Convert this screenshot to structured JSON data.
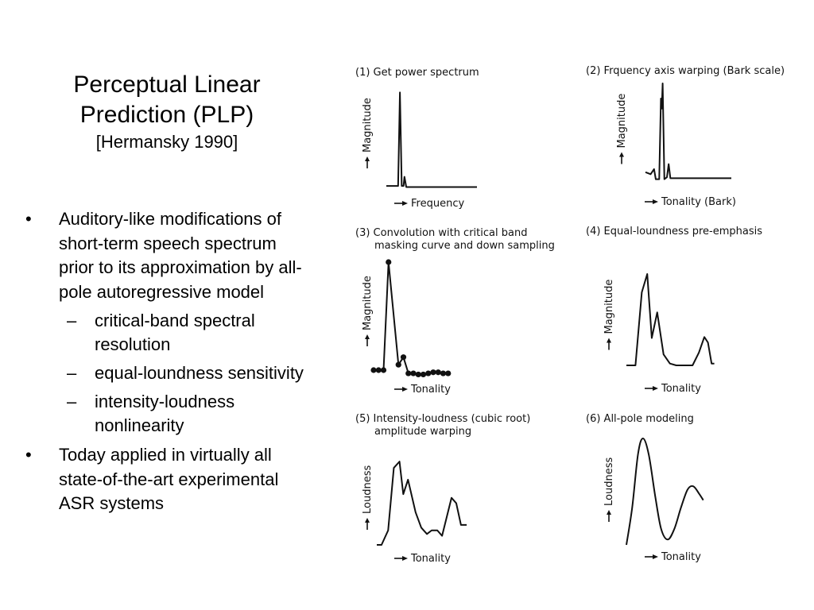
{
  "title": {
    "line1": "Perceptual Linear",
    "line2": "Prediction (PLP)",
    "citation": "[Hermansky 1990]"
  },
  "bullets": [
    {
      "text": "Auditory-like modifications of short-term speech spectrum prior to its approximation by all-pole autoregressive model",
      "subitems": [
        "critical-band spectral resolution",
        "equal-loundness sensitivity",
        "intensity-loudness nonlinearity"
      ]
    },
    {
      "text": "Today applied in virtually all state-of-the-art experimental ASR systems",
      "subitems": []
    }
  ],
  "markers": {
    "bullet": "•",
    "sub": "–"
  },
  "panels": [
    {
      "caption": [
        "(1) Get power spectrum"
      ],
      "ylabel": "Magnitude",
      "xlabel": "Frequency",
      "style": "line",
      "points": [
        [
          0,
          0.03
        ],
        [
          0.13,
          0.03
        ],
        [
          0.15,
          0.95
        ],
        [
          0.17,
          0.03
        ],
        [
          0.19,
          0.03
        ],
        [
          0.2,
          0.12
        ],
        [
          0.22,
          0.02
        ],
        [
          1,
          0.02
        ]
      ]
    },
    {
      "caption": [
        "(2) Frquency axis warping (Bark scale)"
      ],
      "ylabel": "Magnitude",
      "xlabel": "Tonality (Bark)",
      "style": "line",
      "points": [
        [
          0,
          0.12
        ],
        [
          0.06,
          0.1
        ],
        [
          0.1,
          0.15
        ],
        [
          0.12,
          0.05
        ],
        [
          0.16,
          0.05
        ],
        [
          0.18,
          0.85
        ],
        [
          0.19,
          0.75
        ],
        [
          0.2,
          1.0
        ],
        [
          0.22,
          0.05
        ],
        [
          0.25,
          0.07
        ],
        [
          0.27,
          0.2
        ],
        [
          0.29,
          0.06
        ],
        [
          1,
          0.06
        ]
      ]
    },
    {
      "caption": [
        "(3) Convolution with critical band",
        "masking curve and down sampling"
      ],
      "ylabel": "Magnitude",
      "xlabel": "Tonality",
      "style": "dots",
      "points": [
        [
          0,
          0.0
        ],
        [
          0.05,
          0.0
        ],
        [
          0.1,
          0.0
        ],
        [
          0.15,
          1.0
        ],
        [
          0.25,
          0.05
        ],
        [
          0.3,
          0.12
        ],
        [
          0.35,
          -0.03
        ],
        [
          0.4,
          -0.03
        ],
        [
          0.45,
          -0.04
        ],
        [
          0.5,
          -0.04
        ],
        [
          0.55,
          -0.03
        ],
        [
          0.6,
          -0.02
        ],
        [
          0.65,
          -0.02
        ],
        [
          0.7,
          -0.03
        ],
        [
          0.75,
          -0.03
        ]
      ]
    },
    {
      "caption": [
        "(4) Equal-loundness pre-emphasis"
      ],
      "ylabel": "Magnitude",
      "xlabel": "Tonality",
      "style": "line",
      "points": [
        [
          0,
          0.0
        ],
        [
          0.1,
          0.0
        ],
        [
          0.17,
          0.8
        ],
        [
          0.23,
          1.0
        ],
        [
          0.28,
          0.3
        ],
        [
          0.34,
          0.58
        ],
        [
          0.41,
          0.12
        ],
        [
          0.48,
          0.02
        ],
        [
          0.55,
          0.0
        ],
        [
          0.63,
          0.0
        ],
        [
          0.73,
          0.0
        ],
        [
          0.8,
          0.14
        ],
        [
          0.86,
          0.31
        ],
        [
          0.9,
          0.25
        ],
        [
          0.94,
          0.02
        ],
        [
          0.97,
          0.02
        ]
      ]
    },
    {
      "caption": [
        "(5) Intensity-loudness (cubic root)",
        "amplitude warping"
      ],
      "ylabel": "Loudness",
      "xlabel": "Tonality",
      "style": "line",
      "points": [
        [
          0,
          0.0
        ],
        [
          0.05,
          0.0
        ],
        [
          0.12,
          0.16
        ],
        [
          0.18,
          0.85
        ],
        [
          0.24,
          0.92
        ],
        [
          0.28,
          0.56
        ],
        [
          0.33,
          0.72
        ],
        [
          0.41,
          0.36
        ],
        [
          0.47,
          0.19
        ],
        [
          0.53,
          0.12
        ],
        [
          0.58,
          0.16
        ],
        [
          0.64,
          0.16
        ],
        [
          0.69,
          0.1
        ],
        [
          0.79,
          0.52
        ],
        [
          0.84,
          0.46
        ],
        [
          0.89,
          0.22
        ],
        [
          0.95,
          0.22
        ]
      ]
    },
    {
      "caption": [
        "(6) All-pole modeling"
      ],
      "ylabel": "Loudness",
      "xlabel": "Tonality",
      "style": "smooth",
      "points": [
        [
          0,
          0.0
        ],
        [
          0.07,
          0.35
        ],
        [
          0.14,
          0.85
        ],
        [
          0.2,
          1.0
        ],
        [
          0.27,
          0.85
        ],
        [
          0.35,
          0.45
        ],
        [
          0.42,
          0.15
        ],
        [
          0.5,
          0.05
        ],
        [
          0.58,
          0.15
        ],
        [
          0.66,
          0.35
        ],
        [
          0.74,
          0.52
        ],
        [
          0.81,
          0.55
        ],
        [
          0.88,
          0.48
        ],
        [
          0.93,
          0.42
        ]
      ]
    }
  ]
}
